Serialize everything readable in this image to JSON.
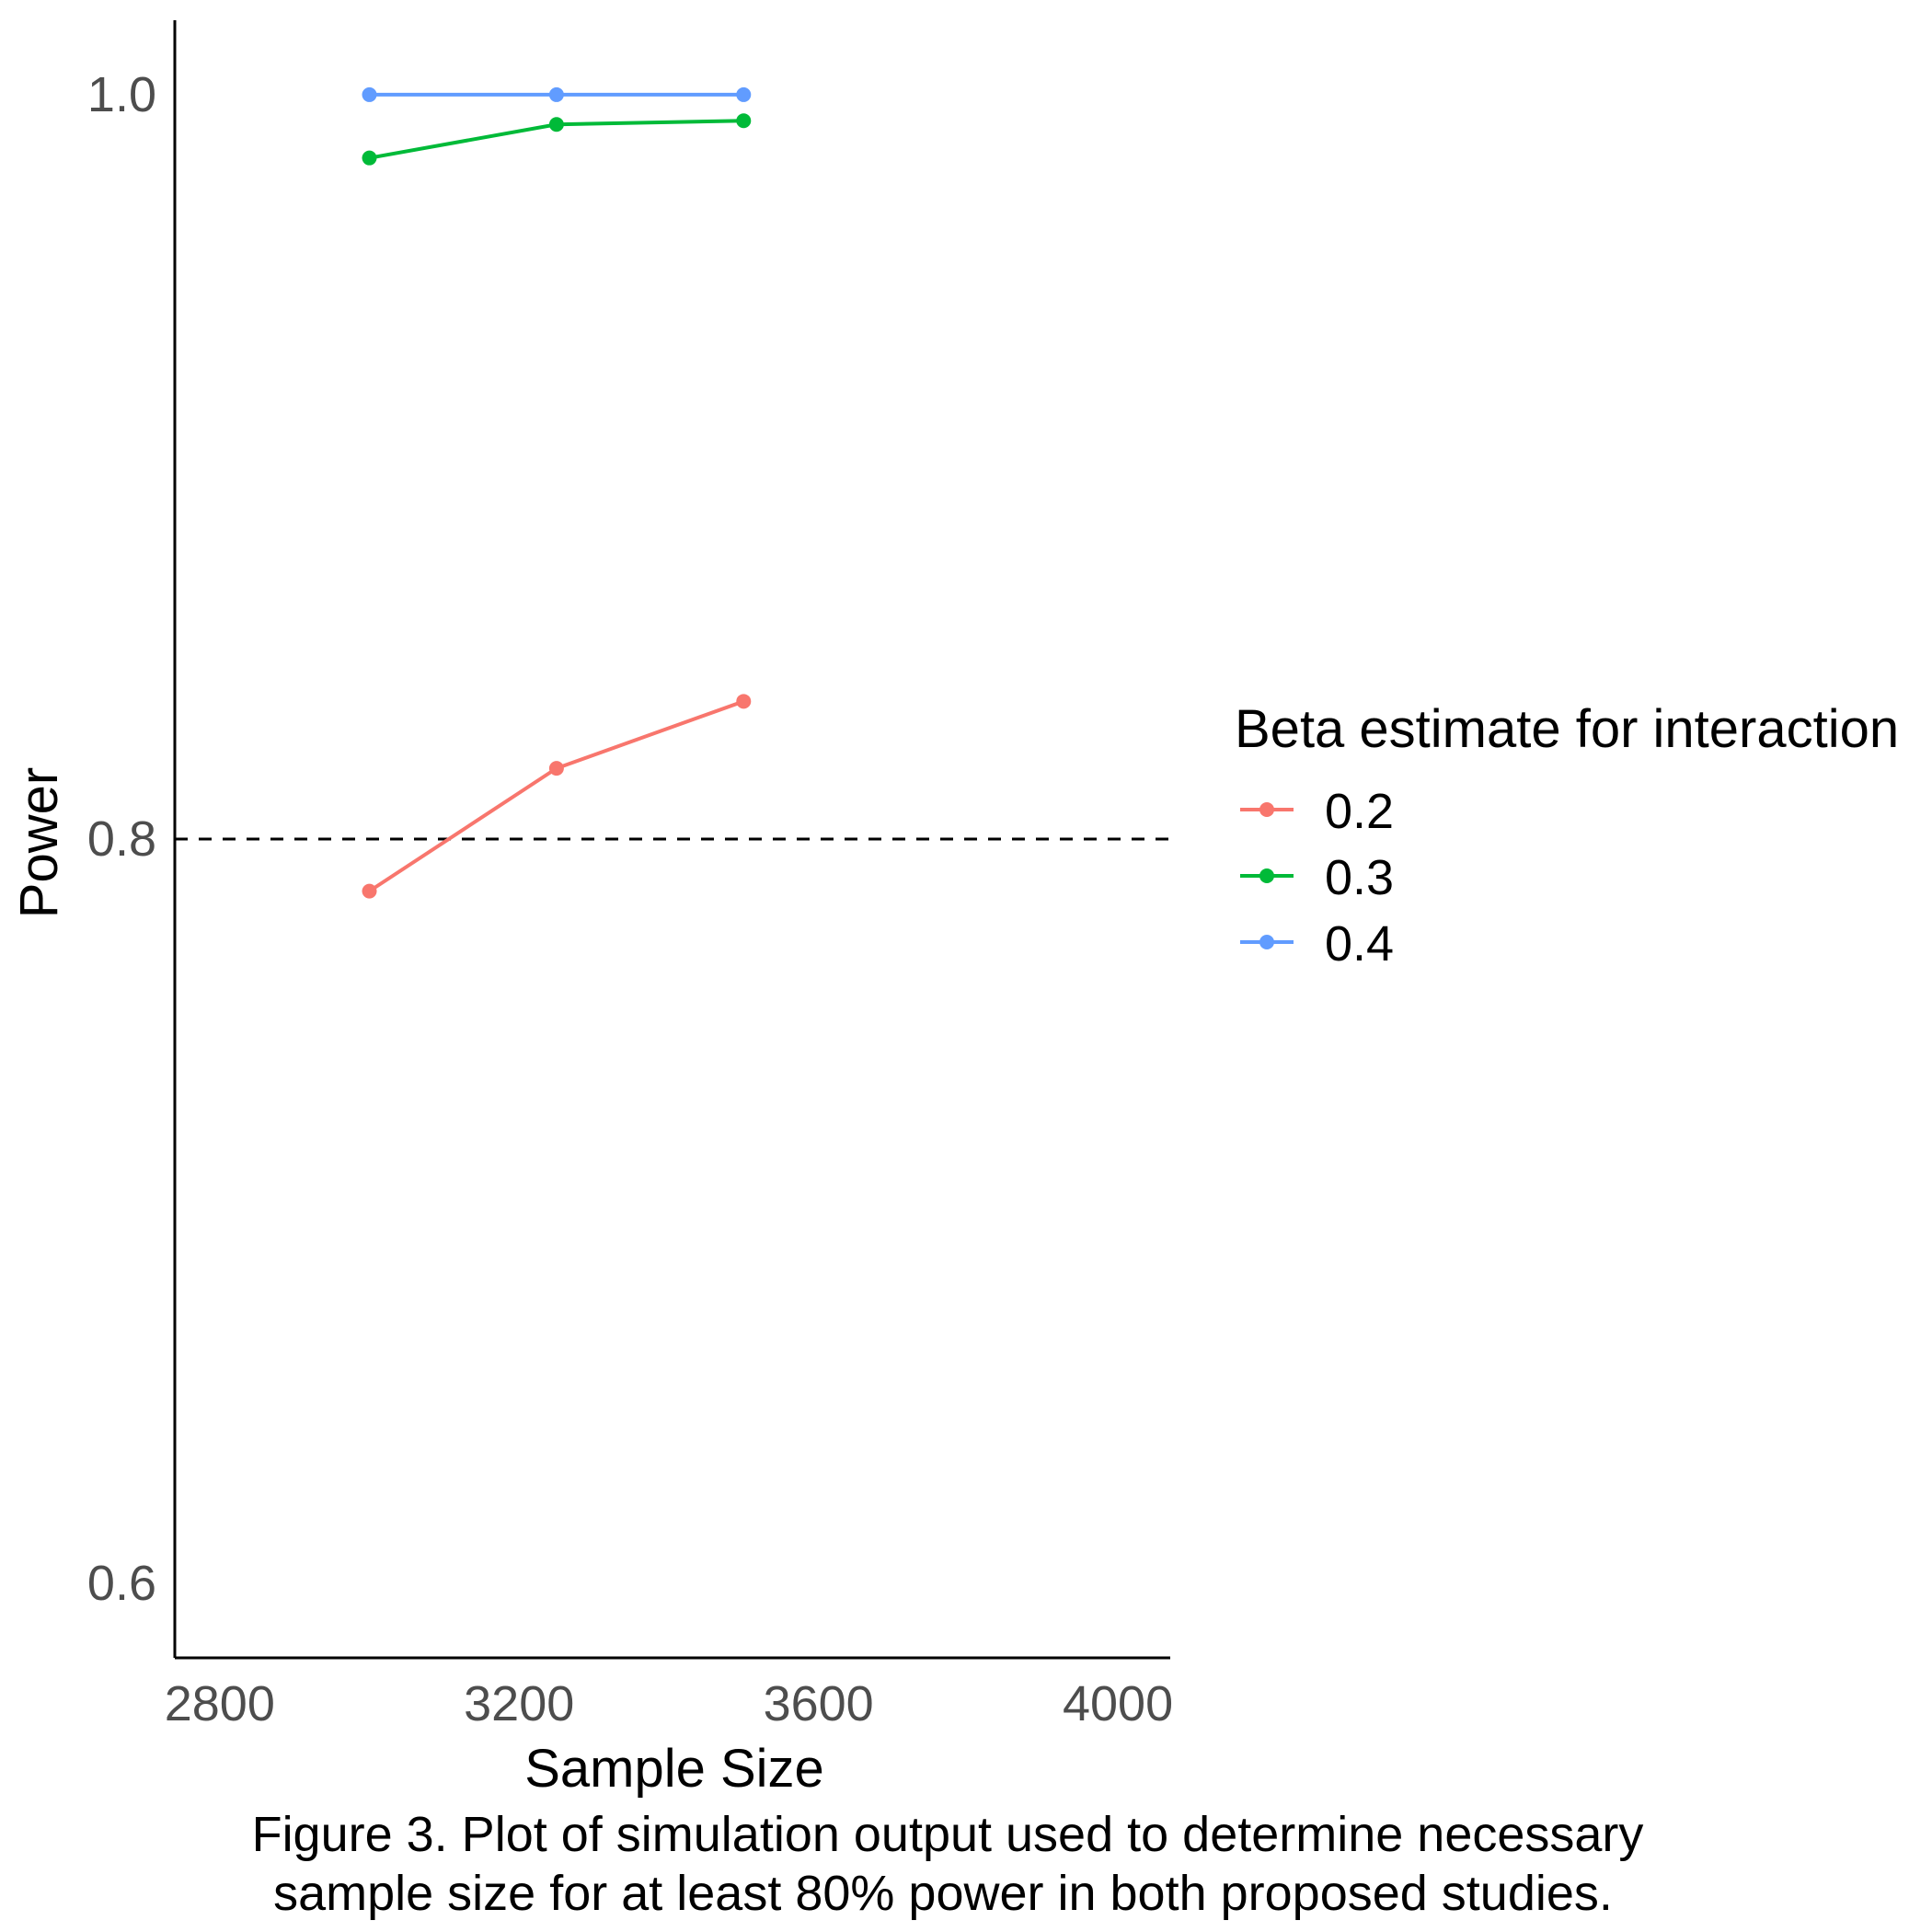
{
  "chart_data": {
    "type": "line",
    "title": "",
    "xlabel": "Sample Size",
    "ylabel": "Power",
    "xlim": [
      2740,
      4070
    ],
    "ylim": [
      0.58,
      1.02
    ],
    "xticks": [
      "2800",
      "3200",
      "3600",
      "4000"
    ],
    "xtick_values": [
      2800,
      3200,
      3600,
      4000
    ],
    "yticks": [
      "0.6",
      "0.8",
      "1.0"
    ],
    "ytick_values": [
      0.6,
      0.8,
      1.0
    ],
    "grid": false,
    "reference_line": {
      "y": 0.8,
      "style": "dashed",
      "color": "#000000"
    },
    "legend": {
      "title": "Beta estimate for interaction",
      "position": "right"
    },
    "x": [
      3000,
      3250,
      3500
    ],
    "series": [
      {
        "name": "0.2",
        "color": "#F8766D",
        "values": [
          0.786,
          0.819,
          0.837
        ]
      },
      {
        "name": "0.3",
        "color": "#00BA38",
        "values": [
          0.983,
          0.992,
          0.993
        ]
      },
      {
        "name": "0.4",
        "color": "#619CFF",
        "values": [
          1.0,
          1.0,
          1.0
        ]
      }
    ]
  },
  "caption": {
    "line1": "Figure 3. Plot of simulation output used to determine necessary",
    "line2": "sample size for at least 80% power in both proposed studies."
  }
}
